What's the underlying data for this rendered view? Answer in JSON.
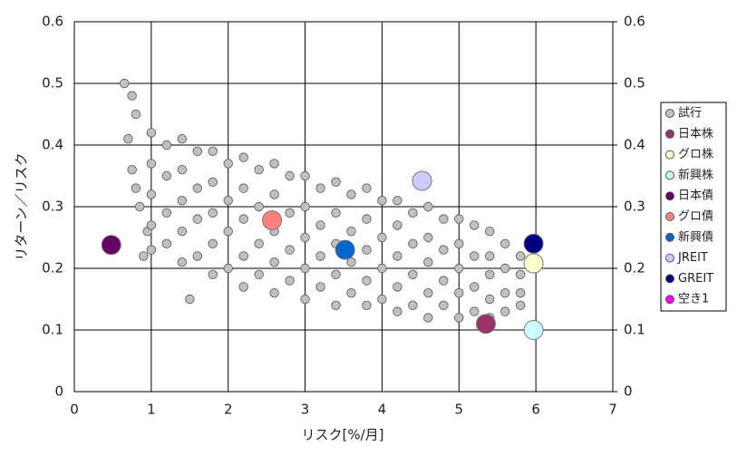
{
  "chart_data": {
    "type": "scatter",
    "xlabel": "リスク[%/月]",
    "ylabel": "リターン／リスク",
    "xlim": [
      0,
      7
    ],
    "xticks": [
      0,
      1,
      2,
      3,
      4,
      5,
      6,
      7
    ],
    "ylim": [
      0,
      0.6
    ],
    "yticks": [
      0,
      0.1,
      0.2,
      0.3,
      0.4,
      0.5,
      0.6
    ],
    "y2lim": [
      0,
      0.6
    ],
    "y2ticks": [
      0,
      0.1,
      0.2,
      0.3,
      0.4,
      0.5,
      0.6
    ],
    "grid": true,
    "legend": "right",
    "series": [
      {
        "name": "試行",
        "color": "#c0c0c0",
        "x": [
          0.65,
          0.75,
          0.8,
          0.7,
          0.75,
          0.8,
          0.85,
          0.9,
          0.95,
          1.5,
          1.0,
          1.0,
          1.0,
          1.0,
          1.0,
          1.2,
          1.2,
          1.2,
          1.2,
          1.4,
          1.4,
          1.4,
          1.4,
          1.4,
          1.6,
          1.6,
          1.6,
          1.6,
          1.8,
          1.8,
          1.8,
          1.8,
          1.8,
          2.0,
          2.0,
          2.0,
          2.0,
          2.2,
          2.2,
          2.2,
          2.2,
          2.2,
          2.4,
          2.4,
          2.4,
          2.4,
          2.6,
          2.6,
          2.6,
          2.6,
          2.6,
          2.8,
          2.8,
          2.8,
          2.8,
          3.0,
          3.0,
          3.0,
          3.0,
          3.0,
          3.2,
          3.2,
          3.2,
          3.2,
          3.4,
          3.4,
          3.4,
          3.4,
          3.4,
          3.6,
          3.6,
          3.6,
          3.6,
          3.8,
          3.8,
          3.8,
          3.8,
          3.8,
          4.0,
          4.0,
          4.0,
          4.0,
          4.2,
          4.2,
          4.2,
          4.2,
          4.2,
          4.4,
          4.4,
          4.4,
          4.4,
          4.6,
          4.6,
          4.6,
          4.6,
          4.6,
          4.8,
          4.8,
          4.8,
          4.8,
          5.0,
          5.0,
          5.0,
          5.0,
          5.0,
          5.2,
          5.2,
          5.2,
          5.2,
          5.4,
          5.4,
          5.4,
          5.4,
          5.4,
          5.6,
          5.6,
          5.6,
          5.6,
          5.8,
          5.8,
          5.8,
          5.8
        ],
        "values": [
          0.5,
          0.48,
          0.45,
          0.41,
          0.36,
          0.33,
          0.3,
          0.22,
          0.26,
          0.15,
          0.42,
          0.37,
          0.32,
          0.27,
          0.23,
          0.4,
          0.35,
          0.29,
          0.24,
          0.41,
          0.36,
          0.31,
          0.26,
          0.21,
          0.39,
          0.33,
          0.28,
          0.22,
          0.39,
          0.34,
          0.29,
          0.24,
          0.19,
          0.37,
          0.31,
          0.26,
          0.2,
          0.38,
          0.33,
          0.28,
          0.22,
          0.17,
          0.36,
          0.3,
          0.24,
          0.19,
          0.37,
          0.32,
          0.26,
          0.21,
          0.16,
          0.35,
          0.29,
          0.23,
          0.18,
          0.35,
          0.3,
          0.25,
          0.2,
          0.15,
          0.33,
          0.27,
          0.22,
          0.17,
          0.34,
          0.29,
          0.24,
          0.19,
          0.14,
          0.32,
          0.26,
          0.21,
          0.16,
          0.33,
          0.28,
          0.23,
          0.18,
          0.14,
          0.31,
          0.25,
          0.2,
          0.15,
          0.31,
          0.27,
          0.22,
          0.17,
          0.13,
          0.29,
          0.24,
          0.19,
          0.14,
          0.3,
          0.25,
          0.21,
          0.16,
          0.12,
          0.28,
          0.23,
          0.18,
          0.14,
          0.28,
          0.24,
          0.2,
          0.16,
          0.12,
          0.27,
          0.22,
          0.17,
          0.13,
          0.26,
          0.22,
          0.19,
          0.15,
          0.12,
          0.24,
          0.2,
          0.16,
          0.13,
          0.22,
          0.19,
          0.16,
          0.14
        ]
      },
      {
        "name": "日本株",
        "color": "#993366",
        "x": [
          5.35
        ],
        "values": [
          0.11
        ]
      },
      {
        "name": "グロ株",
        "color": "#ffffcc",
        "x": [
          5.97
        ],
        "values": [
          0.208
        ]
      },
      {
        "name": "新興株",
        "color": "#ccffff",
        "x": [
          5.97
        ],
        "values": [
          0.1
        ]
      },
      {
        "name": "日本債",
        "color": "#660066",
        "x": [
          0.48
        ],
        "values": [
          0.238
        ]
      },
      {
        "name": "グロ債",
        "color": "#ff8080",
        "x": [
          2.57
        ],
        "values": [
          0.278
        ]
      },
      {
        "name": "新興債",
        "color": "#0066cc",
        "x": [
          3.52
        ],
        "values": [
          0.23
        ]
      },
      {
        "name": "JREIT",
        "color": "#ccccff",
        "x": [
          4.52
        ],
        "values": [
          0.342
        ]
      },
      {
        "name": "GREIT",
        "color": "#000080",
        "x": [
          5.97
        ],
        "values": [
          0.24
        ]
      },
      {
        "name": "空き1",
        "color": "#ff00ff",
        "x": [],
        "values": []
      }
    ]
  }
}
